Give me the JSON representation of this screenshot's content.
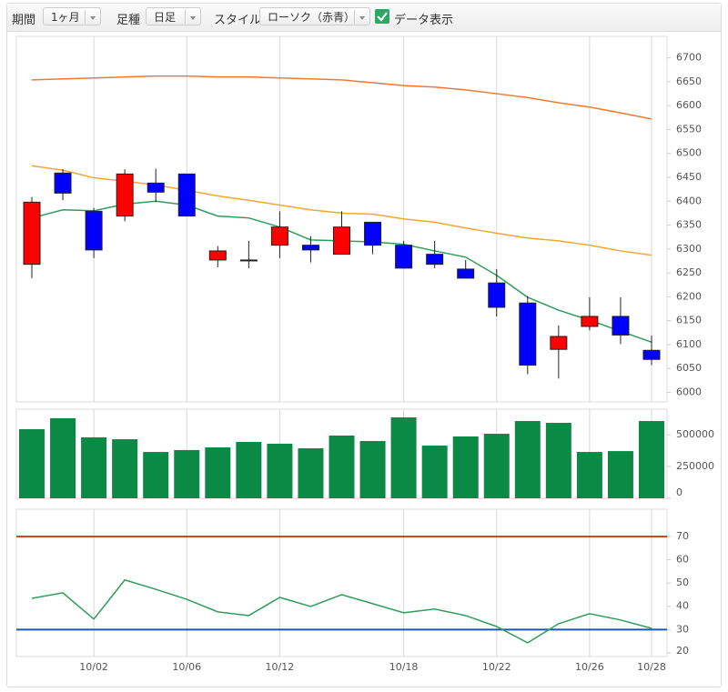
{
  "toolbar": {
    "period_label": "期間",
    "period": "1ヶ月",
    "bar_label": "足種",
    "bar": "日足",
    "style_label": "スタイル",
    "style": "ローソク（赤青）",
    "data_label": "データ表示",
    "data_checked": true
  },
  "chart_data": [
    {
      "type": "candlestick",
      "categories": [
        null,
        null,
        "10/02",
        null,
        null,
        "10/06",
        null,
        null,
        "10/12",
        null,
        null,
        null,
        "10/18",
        null,
        null,
        "10/22",
        null,
        null,
        "10/26",
        null,
        "10/28"
      ],
      "open": [
        6268,
        6459,
        6379,
        6369,
        6438,
        6457,
        6277,
        6277,
        6308,
        6308,
        6289,
        6356,
        6308,
        6289,
        6258,
        6229,
        6187,
        6090,
        6138,
        6159,
        6088
      ],
      "high": [
        6409,
        6467,
        6386,
        6467,
        6468,
        6457,
        6306,
        6317,
        6379,
        6327,
        6379,
        6356,
        6317,
        6317,
        6277,
        6258,
        6201,
        6140,
        6199,
        6199,
        6119
      ],
      "low": [
        6239,
        6402,
        6281,
        6358,
        6398,
        6369,
        6262,
        6260,
        6281,
        6272,
        6289,
        6289,
        6260,
        6260,
        6239,
        6159,
        6038,
        6029,
        6130,
        6101,
        6057
      ],
      "close": [
        6398,
        6417,
        6298,
        6457,
        6419,
        6369,
        6296,
        6277,
        6346,
        6298,
        6346,
        6308,
        6260,
        6268,
        6239,
        6178,
        6057,
        6117,
        6159,
        6120,
        6069
      ],
      "up_color": "#ff0000",
      "down_color": "#0000ff",
      "lines": [
        {
          "color": "#2e9e5b",
          "values": [
            6365,
            6382,
            6380,
            6394,
            6400,
            6392,
            6369,
            6365,
            6346,
            6319,
            6317,
            6315,
            6310,
            6296,
            6283,
            6245,
            6199,
            6172,
            6151,
            6128,
            6105
          ]
        },
        {
          "color": "#f0a830",
          "values": [
            6474,
            6465,
            6449,
            6442,
            6434,
            6423,
            6411,
            6402,
            6392,
            6382,
            6375,
            6373,
            6363,
            6356,
            6344,
            6333,
            6323,
            6317,
            6308,
            6296,
            6287
          ]
        },
        {
          "color": "#ee7a30",
          "values": [
            6654,
            6656,
            6658,
            6660,
            6662,
            6662,
            6660,
            6660,
            6658,
            6656,
            6654,
            6648,
            6642,
            6639,
            6633,
            6625,
            6617,
            6606,
            6597,
            6585,
            6572
          ]
        }
      ],
      "ylim": [
        5980,
        6745
      ],
      "yticks": [
        6000,
        6050,
        6100,
        6150,
        6200,
        6250,
        6300,
        6350,
        6400,
        6450,
        6500,
        6550,
        6600,
        6650,
        6700
      ],
      "grid": true
    },
    {
      "type": "bar",
      "values": [
        543000,
        629000,
        479000,
        464000,
        364000,
        379000,
        400000,
        443000,
        429000,
        393000,
        493000,
        450000,
        636000,
        414000,
        486000,
        507000,
        607000,
        593000,
        364000,
        371000,
        607000
      ],
      "color": "#0b8a45",
      "ylim": [
        0,
        700000
      ],
      "yticks": [
        0,
        250000,
        500000
      ],
      "grid": true
    },
    {
      "type": "line",
      "lines": [
        {
          "color": "#2e9e5b",
          "values": [
            43.4,
            45.8,
            34.5,
            51.3,
            47.3,
            43,
            37.6,
            36,
            43.8,
            39.9,
            45,
            41.1,
            37.2,
            38.8,
            36,
            31.3,
            24.3,
            32.5,
            36.8,
            34.1,
            30.5
          ]
        }
      ],
      "hlines": [
        {
          "value": 70,
          "color": "#e0401e"
        },
        {
          "value": 30,
          "color": "#1a5aa8"
        }
      ],
      "ylim": [
        18.4,
        81.7
      ],
      "yticks": [
        20,
        30,
        40,
        50,
        60,
        70
      ],
      "grid": true
    }
  ]
}
